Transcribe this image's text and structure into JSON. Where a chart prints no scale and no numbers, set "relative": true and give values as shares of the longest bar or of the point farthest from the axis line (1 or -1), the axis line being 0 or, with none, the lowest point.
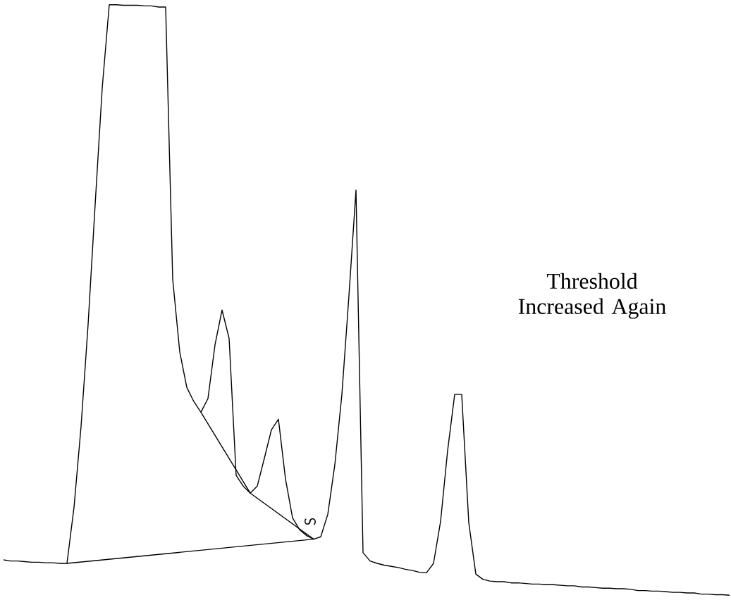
{
  "chart_data": {
    "type": "line",
    "relative": true,
    "annotations": [
      "S",
      "Threshold Increased Again"
    ],
    "categories": [
      null,
      null,
      null,
      null,
      null,
      null,
      null,
      null,
      null,
      null,
      null,
      null,
      null,
      null,
      null,
      null,
      null,
      null,
      null,
      null,
      null,
      null,
      null,
      null,
      null,
      null,
      null,
      null,
      null,
      null,
      null,
      null,
      null,
      null,
      null,
      null,
      null,
      null,
      null,
      null,
      null,
      null,
      null,
      null,
      null,
      null,
      null,
      null,
      null,
      null,
      null,
      null,
      null,
      null,
      null,
      null,
      null,
      null,
      null,
      null,
      null,
      null,
      null,
      null,
      null,
      null,
      null,
      null,
      null,
      null,
      null,
      null,
      null,
      null,
      null,
      null,
      null,
      null,
      null,
      null,
      null,
      null,
      null,
      null,
      null,
      null,
      null,
      null,
      null,
      null,
      null,
      null,
      null,
      null,
      null,
      null,
      null,
      null,
      null,
      null,
      null,
      null,
      null,
      null
    ],
    "series": [
      {
        "color": "#000000",
        "values": [
          0.06,
          0.058,
          0.058,
          0.057,
          0.056,
          0.056,
          0.055,
          0.055,
          0.054,
          0.054,
          0.149,
          0.286,
          0.459,
          0.662,
          0.859,
          1.0,
          1.0,
          0.999,
          0.999,
          0.999,
          0.998,
          0.998,
          0.996,
          0.996,
          0.535,
          0.412,
          0.352,
          0.328,
          0.31,
          0.333,
          0.424,
          0.483,
          0.435,
          0.203,
          0.185,
          0.173,
          0.185,
          0.232,
          0.28,
          0.298,
          0.197,
          0.131,
          0.111,
          0.101,
          0.095,
          0.099,
          0.137,
          0.221,
          0.34,
          0.507,
          0.686,
          0.072,
          0.058,
          0.054,
          0.051,
          0.049,
          0.047,
          0.044,
          0.042,
          0.039,
          0.038,
          0.054,
          0.125,
          0.245,
          0.34,
          0.34,
          0.123,
          0.036,
          0.027,
          0.024,
          0.023,
          0.023,
          0.021,
          0.021,
          0.02,
          0.019,
          0.019,
          0.018,
          0.018,
          0.017,
          0.016,
          0.016,
          0.014,
          0.014,
          0.013,
          0.012,
          0.012,
          0.011,
          0.011,
          0.01,
          0.008,
          0.008,
          0.007,
          0.007,
          0.006,
          0.005,
          0.005,
          0.004,
          0.004,
          0.002,
          0.002,
          0.001,
          0.001,
          0.0
        ]
      },
      {
        "color": "#000000",
        "values": [
          null,
          null,
          null,
          null,
          null,
          null,
          null,
          null,
          null,
          0.054,
          null,
          null,
          null,
          null,
          null,
          null,
          null,
          null,
          null,
          null,
          null,
          null,
          null,
          null,
          null,
          null,
          null,
          null,
          null,
          null,
          null,
          null,
          null,
          null,
          null,
          null,
          null,
          null,
          null,
          null,
          null,
          null,
          null,
          null,
          0.095,
          null,
          null,
          null,
          null,
          null,
          null,
          null,
          null,
          null,
          null,
          null,
          null,
          null,
          null,
          null,
          null,
          null,
          null,
          null,
          null,
          null,
          null,
          null,
          null,
          null,
          null,
          null,
          null,
          null,
          null,
          null,
          null,
          null,
          null,
          null,
          null,
          null,
          null,
          null,
          null,
          null,
          null,
          null,
          null,
          null,
          null,
          null,
          null,
          null,
          null,
          null,
          null,
          null,
          null,
          null,
          null,
          null,
          null,
          null
        ]
      },
      {
        "color": "#000000",
        "values": [
          null,
          null,
          null,
          null,
          null,
          null,
          null,
          null,
          null,
          null,
          null,
          null,
          null,
          null,
          null,
          null,
          null,
          null,
          null,
          null,
          null,
          null,
          null,
          null,
          null,
          null,
          null,
          null,
          0.31,
          null,
          null,
          null,
          null,
          null,
          null,
          0.173,
          null,
          null,
          null,
          null,
          null,
          null,
          null,
          null,
          0.095,
          null,
          null,
          null,
          null,
          null,
          null,
          null,
          null,
          null,
          null,
          null,
          null,
          null,
          null,
          null,
          null,
          null,
          null,
          null,
          null,
          null,
          null,
          null,
          null,
          null,
          null,
          null,
          null,
          null,
          null,
          null,
          null,
          null,
          null,
          null,
          null,
          null,
          null,
          null,
          null,
          null,
          null,
          null,
          null,
          null,
          null,
          null,
          null,
          null,
          null,
          null,
          null,
          null,
          null,
          null,
          null,
          null,
          null,
          null
        ]
      }
    ]
  }
}
